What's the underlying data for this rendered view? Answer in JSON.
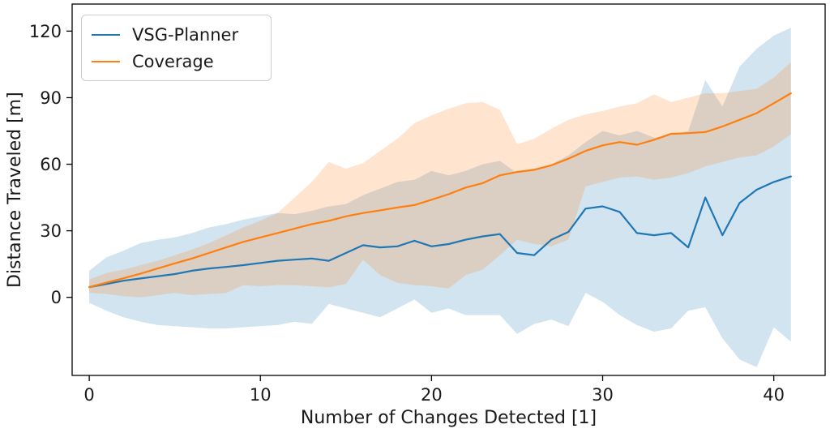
{
  "figure": {
    "background": "#ffffff",
    "text_color": "#1a1a1a"
  },
  "axes": {
    "xlabel": "Number of Changes Detected [1]",
    "ylabel": "Distance Traveled [m]",
    "xticks": [
      0,
      10,
      20,
      30,
      40
    ],
    "yticks": [
      0,
      30,
      60,
      90,
      120
    ],
    "grid": false
  },
  "legend": {
    "position": "upper left",
    "items": [
      {
        "label": "VSG-Planner",
        "color": "#1f77b4"
      },
      {
        "label": "Coverage",
        "color": "#ff7f0e"
      }
    ]
  },
  "chart_data": {
    "type": "line",
    "title": "",
    "xlabel": "Number of Changes Detected [1]",
    "ylabel": "Distance Traveled [m]",
    "xlim": [
      -1.0,
      43.0
    ],
    "ylim": [
      -35.2,
      132.2
    ],
    "grid": false,
    "legend_position": "upper left",
    "x": [
      0,
      1,
      2,
      3,
      4,
      5,
      6,
      7,
      8,
      9,
      10,
      11,
      12,
      13,
      14,
      15,
      16,
      17,
      18,
      19,
      20,
      21,
      22,
      23,
      24,
      25,
      26,
      27,
      28,
      29,
      30,
      31,
      32,
      33,
      34,
      35,
      36,
      37,
      38,
      39,
      40,
      41
    ],
    "series": [
      {
        "name": "VSG-Planner",
        "color": "#1f77b4",
        "band_opacity": 0.2,
        "values": [
          4.6,
          6,
          7.5,
          8.5,
          9.5,
          10.5,
          12,
          13,
          13.7,
          14.5,
          15.5,
          16.5,
          17,
          17.5,
          16.5,
          20,
          23.5,
          22.5,
          23,
          25.5,
          23,
          24,
          26,
          27.5,
          28.5,
          20,
          19,
          26,
          29.5,
          40,
          41,
          38.5,
          29,
          28,
          29,
          22.5,
          45,
          28,
          42.5,
          48.5,
          52,
          54.5
        ],
        "band_upper": [
          12,
          18,
          21,
          24.5,
          26,
          27,
          29,
          31.5,
          33,
          35,
          36.5,
          38,
          37.5,
          39,
          41,
          42,
          46,
          49,
          52,
          53,
          57,
          55,
          57,
          60,
          61.5,
          56,
          58,
          60,
          64,
          70,
          75,
          73,
          75,
          72,
          73,
          75,
          98,
          86,
          104,
          112,
          118,
          121.5
        ],
        "band_lower": [
          -2.5,
          -6,
          -9,
          -11,
          -12.5,
          -13,
          -13.5,
          -14,
          -14,
          -13.5,
          -13,
          -12.5,
          -11,
          -12,
          -3,
          -5,
          -7,
          -9,
          -5,
          -1,
          -7,
          -5,
          -8,
          -8,
          -8,
          -16.5,
          -12,
          -10,
          -13,
          2,
          -2,
          -8,
          -12.5,
          -15.5,
          -14,
          -6,
          -4.5,
          -18.5,
          -28,
          -31.5,
          -13.5,
          -20
        ]
      },
      {
        "name": "Coverage",
        "color": "#ff7f0e",
        "band_opacity": 0.2,
        "values": [
          4.6,
          6.6,
          8.6,
          10.7,
          13,
          15.3,
          17.5,
          20,
          22.5,
          25,
          27,
          29,
          31,
          33,
          34.5,
          36.5,
          38,
          39.2,
          40.5,
          41.6,
          44,
          46.5,
          49.5,
          51.5,
          55,
          56.5,
          57.5,
          59.5,
          62.5,
          66,
          68.5,
          70,
          68.8,
          71,
          73.7,
          74,
          74.5,
          77,
          80,
          83,
          87.5,
          92
        ],
        "band_upper": [
          8,
          11,
          12.5,
          14.5,
          16.5,
          19,
          21.5,
          24.5,
          28,
          31.5,
          34.5,
          38,
          45,
          52,
          61,
          58,
          60.5,
          66,
          71.5,
          78.5,
          82,
          85,
          87.5,
          88,
          84.5,
          69,
          71.5,
          76,
          80,
          82.5,
          84,
          86,
          87.5,
          91.5,
          88,
          90,
          92,
          92,
          93,
          94,
          99,
          106
        ],
        "band_lower": [
          2,
          1.5,
          0.5,
          0,
          1,
          2,
          1,
          1.5,
          2,
          5.5,
          5,
          5.5,
          5.5,
          5,
          4.5,
          6,
          17,
          10,
          6.5,
          5.5,
          5,
          4,
          10,
          12.5,
          19,
          26,
          24,
          23,
          26,
          50,
          52,
          54,
          54.5,
          53,
          54,
          56,
          59,
          61,
          63,
          64,
          68,
          73.5
        ]
      }
    ]
  }
}
